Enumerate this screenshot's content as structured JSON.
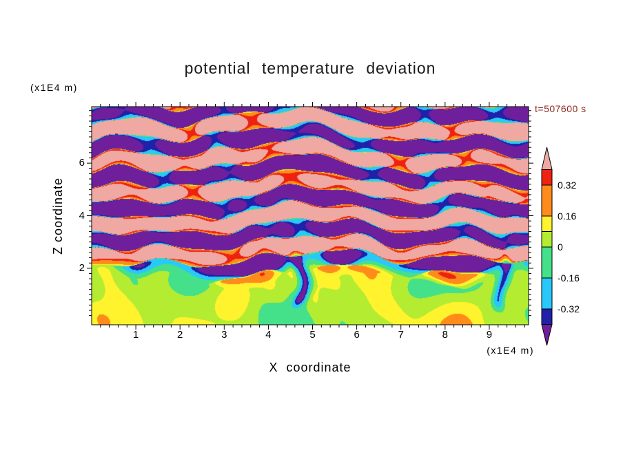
{
  "title": "potential temperature deviation",
  "time_label": "t=507600 s",
  "axes": {
    "x_label": "X coordinate",
    "x_units": "(x1E4 m)",
    "z_label": "Z coordinate",
    "z_units": "(x1E4 m)"
  },
  "colors": {
    "time_label": "#8b2a20",
    "text": "#000000",
    "frame": "#000000"
  },
  "chart_data": {
    "type": "heatmap",
    "subtype": "filled-contour",
    "title": "potential temperature deviation",
    "xlabel": "X coordinate",
    "ylabel": "Z coordinate",
    "x_units": "x1E4 m",
    "z_units": "x1E4 m",
    "time": "t=507600 s",
    "x_range": [
      0,
      9.89
    ],
    "z_range": [
      -0.15,
      8.15
    ],
    "x_major_ticks": [
      1,
      2,
      3,
      4,
      5,
      6,
      7,
      8,
      9
    ],
    "x_minor_step": 0.2,
    "z_major_ticks": [
      2,
      4,
      6
    ],
    "z_minor_step": 0.2,
    "levels": [
      -0.4,
      -0.32,
      -0.16,
      0,
      0.08,
      0.16,
      0.32,
      0.4
    ],
    "band_colors_low_to_high": [
      "#701f9c",
      "#2020a8",
      "#29c8fa",
      "#45e08a",
      "#b4ec32",
      "#fff32e",
      "#ff8c1a",
      "#ee2211",
      "#f0a8a2"
    ],
    "colorbar": {
      "labels": [
        "0.32",
        "0.16",
        "0",
        "-0.16",
        "-0.32"
      ],
      "label_values": [
        0.32,
        0.16,
        0,
        -0.16,
        -0.32
      ]
    },
    "grid": false,
    "legend_position": "right-colorbar",
    "description": "Stratified wave layers saturating beyond +/-0.4 (pink/purple) above a weakly perturbed green/yellow boundary layer below z of about 2x1E4 m"
  }
}
